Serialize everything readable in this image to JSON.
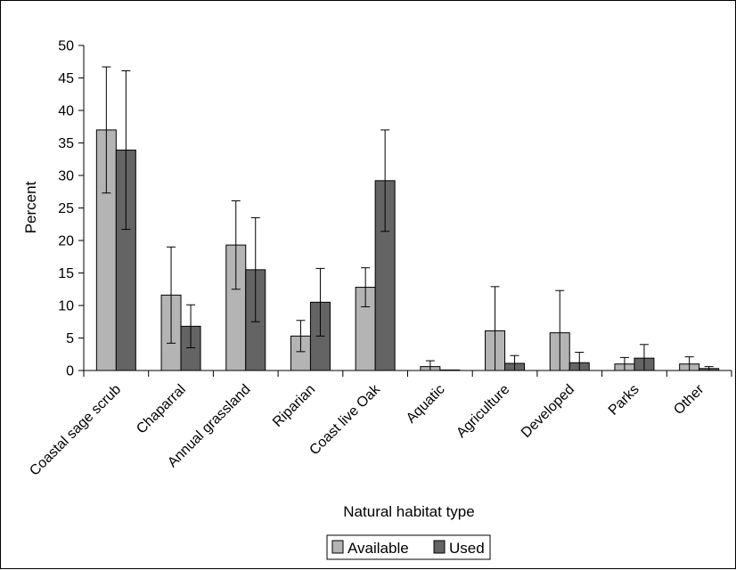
{
  "chart_data": {
    "type": "bar",
    "xlabel": "Natural habitat type",
    "ylabel": "Percent",
    "ylim": [
      0,
      50
    ],
    "yticks": [
      0,
      5,
      10,
      15,
      20,
      25,
      30,
      35,
      40,
      45,
      50
    ],
    "categories": [
      "Coastal sage scrub",
      "Chaparral",
      "Annual grassland",
      "Riparian",
      "Coast live Oak",
      "Aquatic",
      "Agriculture",
      "Developed",
      "Parks",
      "Other"
    ],
    "series": [
      {
        "name": "Available",
        "color": "#b4b4b4",
        "values": [
          37.0,
          11.6,
          19.3,
          5.3,
          12.8,
          0.6,
          6.1,
          5.8,
          1.0,
          1.0
        ],
        "error": [
          9.7,
          7.4,
          6.8,
          2.4,
          3.0,
          0.9,
          6.8,
          6.5,
          1.0,
          1.1
        ]
      },
      {
        "name": "Used",
        "color": "#646464",
        "values": [
          33.9,
          6.8,
          15.5,
          10.5,
          29.2,
          0.05,
          1.1,
          1.2,
          1.9,
          0.3
        ],
        "error": [
          12.2,
          3.3,
          8.0,
          5.2,
          7.8,
          0.0,
          1.2,
          1.6,
          2.1,
          0.3
        ]
      }
    ],
    "grid": false,
    "legend": "bottom"
  }
}
